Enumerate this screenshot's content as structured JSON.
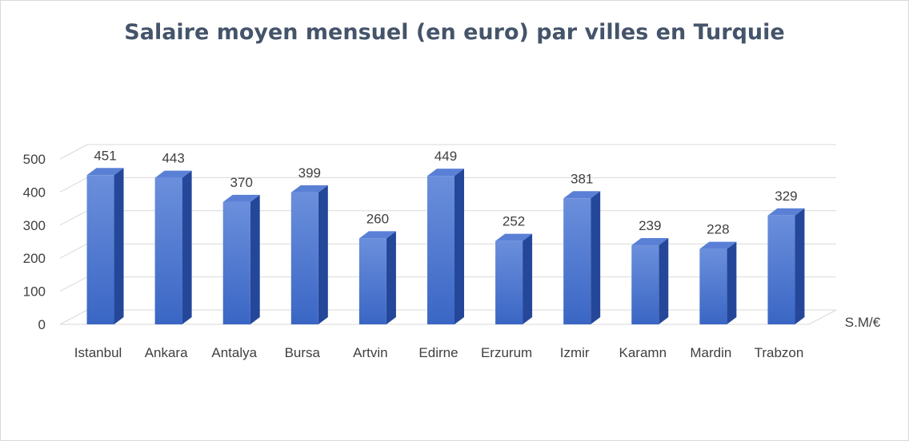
{
  "chart_data": {
    "type": "bar",
    "title": "Salaire moyen mensuel (en euro) par villes en Turquie",
    "categories": [
      "Istanbul",
      "Ankara",
      "Antalya",
      "Bursa",
      "Artvin",
      "Edirne",
      "Erzurum",
      "Izmir",
      "Karamn",
      "Mardin",
      "Trabzon"
    ],
    "series": [
      {
        "name": "S.M/€",
        "values": [
          451,
          443,
          370,
          399,
          260,
          449,
          252,
          381,
          239,
          228,
          329
        ]
      }
    ],
    "yticks": [
      "0",
      "100",
      "200",
      "300",
      "400",
      "500"
    ],
    "ylim": [
      0,
      500
    ],
    "grid": true,
    "bar_style": "3d",
    "colors": {
      "bar_front": "#3a66c4",
      "bar_side": "#25479a",
      "bar_top": "#5a80d6",
      "grid": "#d9d9d9",
      "title": "#44546a"
    }
  }
}
